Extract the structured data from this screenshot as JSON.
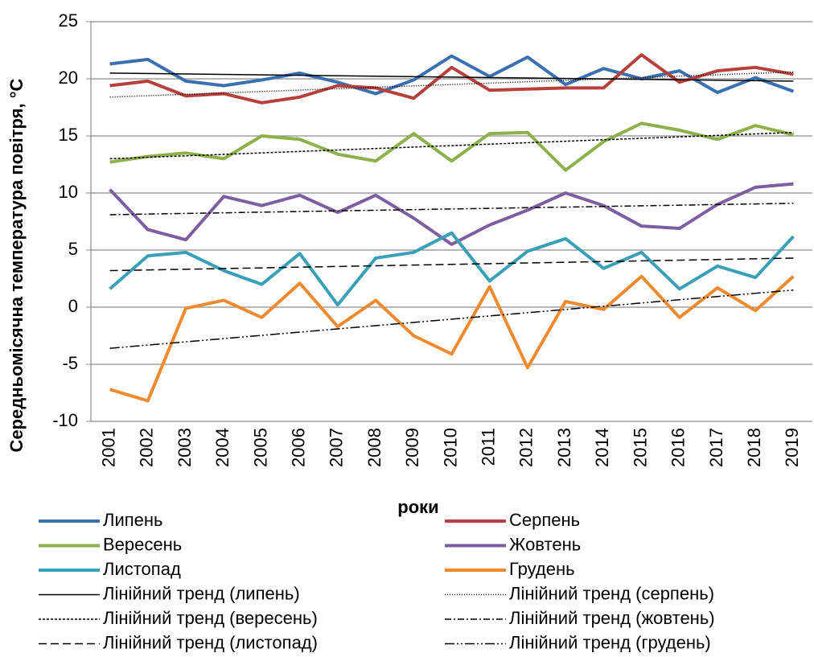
{
  "chart_data": {
    "type": "line",
    "x_label": "роки",
    "y_label": "Середньомісячна температура повітря, °С",
    "categories": [
      "2001",
      "2002",
      "2003",
      "2004",
      "2005",
      "2006",
      "2007",
      "2008",
      "2009",
      "2010",
      "2011",
      "2012",
      "2013",
      "2014",
      "2015",
      "2016",
      "2017",
      "2018",
      "2019"
    ],
    "ylim": [
      -10,
      25
    ],
    "yticks": [
      -10,
      -5,
      0,
      5,
      10,
      15,
      20,
      25
    ],
    "grid": true,
    "series": [
      {
        "name": "Липень",
        "color": "#3a6fb0",
        "values": [
          21.3,
          21.7,
          19.8,
          19.4,
          19.9,
          20.5,
          19.7,
          18.7,
          19.9,
          22.0,
          20.2,
          21.9,
          19.5,
          20.9,
          20.0,
          20.7,
          18.8,
          20.1,
          18.9
        ]
      },
      {
        "name": "Серпень",
        "color": "#b5403c",
        "values": [
          19.4,
          19.8,
          18.5,
          18.7,
          17.9,
          18.4,
          19.4,
          19.2,
          18.3,
          21.0,
          19.0,
          19.1,
          19.2,
          19.2,
          22.1,
          19.7,
          20.7,
          21.0,
          20.4
        ]
      },
      {
        "name": "Вересень",
        "color": "#8db04a",
        "values": [
          12.7,
          13.2,
          13.5,
          13.0,
          15.0,
          14.7,
          13.4,
          12.8,
          15.2,
          12.8,
          15.2,
          15.3,
          12.0,
          14.5,
          16.1,
          15.5,
          14.7,
          15.9,
          15.1
        ]
      },
      {
        "name": "Жовтень",
        "color": "#7d5ea0",
        "values": [
          10.3,
          6.8,
          5.9,
          9.7,
          8.9,
          9.8,
          8.3,
          9.8,
          7.8,
          5.5,
          7.2,
          8.5,
          10.0,
          8.9,
          7.1,
          6.9,
          9.0,
          10.5,
          10.8
        ]
      },
      {
        "name": "Листопад",
        "color": "#3aa0b8",
        "values": [
          1.6,
          4.5,
          4.8,
          3.2,
          2.0,
          4.7,
          0.2,
          4.3,
          4.8,
          6.5,
          2.3,
          4.9,
          6.0,
          3.4,
          4.8,
          1.6,
          3.6,
          2.6,
          6.2
        ]
      },
      {
        "name": "Грудень",
        "color": "#ee8a30",
        "values": [
          -7.2,
          -8.2,
          -0.1,
          0.6,
          -0.9,
          2.1,
          -1.7,
          0.6,
          -2.5,
          -4.1,
          1.8,
          -5.3,
          0.5,
          -0.2,
          2.7,
          -0.9,
          1.7,
          -0.3,
          2.7
        ]
      },
      {
        "name": "Лінійний тренд  (липень)",
        "color": "#000000",
        "dash": "none",
        "x": [
          2001,
          2019
        ],
        "values": [
          20.5,
          19.8
        ]
      },
      {
        "name": "Лінійний тренд  (серпень)",
        "color": "#000000",
        "dash": "1 2",
        "x": [
          2001,
          2019
        ],
        "values": [
          18.4,
          20.6
        ]
      },
      {
        "name": "Лінійний тренд  (вересень)",
        "color": "#000000",
        "dash": "3 2",
        "x": [
          2001,
          2019
        ],
        "values": [
          13.0,
          15.3
        ]
      },
      {
        "name": "Лінійний тренд  (жовтень)",
        "color": "#000000",
        "dash": "8 3 2 3",
        "x": [
          2001,
          2019
        ],
        "values": [
          8.1,
          9.1
        ]
      },
      {
        "name": "Лінійний тренд  (листопад)",
        "color": "#000000",
        "dash": "10 5",
        "x": [
          2001,
          2019
        ],
        "values": [
          3.2,
          4.3
        ]
      },
      {
        "name": "Лінійний тренд  (грудень)",
        "color": "#000000",
        "dash": "12 3 2 3 2 3",
        "x": [
          2001,
          2019
        ],
        "values": [
          -3.6,
          1.5
        ]
      }
    ]
  }
}
